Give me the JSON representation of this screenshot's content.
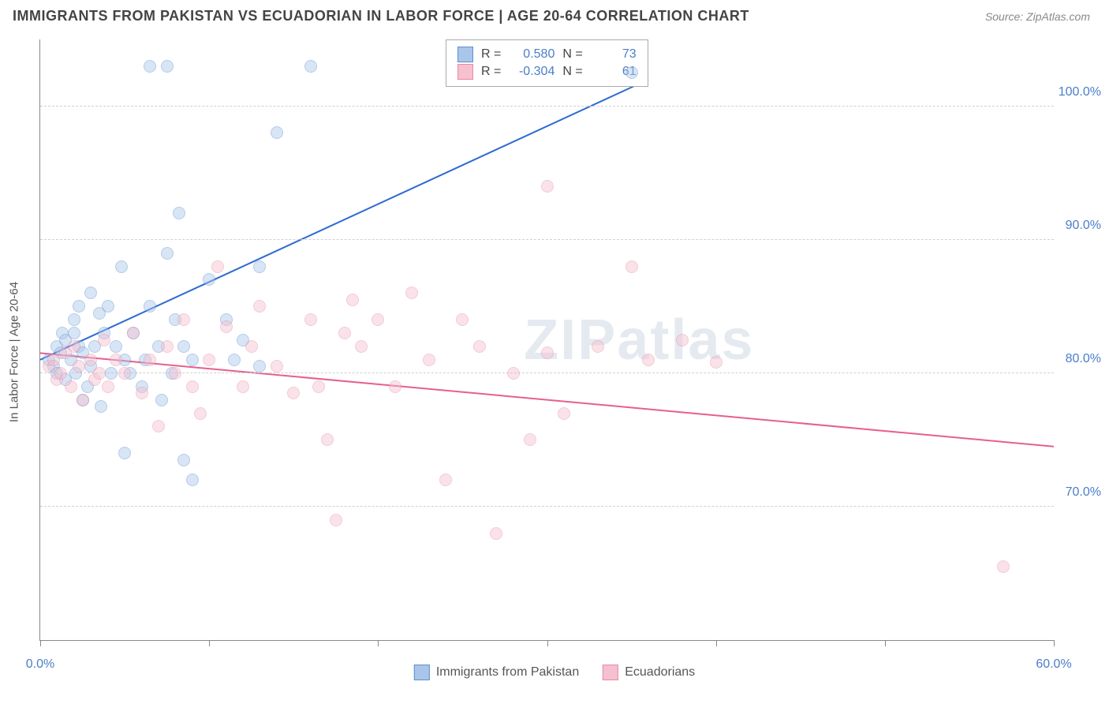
{
  "title": "IMMIGRANTS FROM PAKISTAN VS ECUADORIAN IN LABOR FORCE | AGE 20-64 CORRELATION CHART",
  "source": "Source: ZipAtlas.com",
  "watermark": "ZIPatlas",
  "y_axis_label": "In Labor Force | Age 20-64",
  "chart": {
    "type": "scatter",
    "xlim": [
      0,
      60
    ],
    "ylim": [
      60,
      105
    ],
    "x_ticks": [
      0,
      10,
      20,
      30,
      40,
      50,
      60
    ],
    "x_tick_labels": {
      "0": "0.0%",
      "60": "60.0%"
    },
    "y_ticks": [
      70,
      80,
      90,
      100
    ],
    "y_tick_labels": {
      "70": "70.0%",
      "80": "80.0%",
      "90": "90.0%",
      "100": "100.0%"
    },
    "background_color": "#ffffff",
    "grid_color": "#d0d0d0",
    "marker_radius": 8,
    "marker_opacity": 0.45,
    "line_width": 2,
    "series": [
      {
        "name": "Immigrants from Pakistan",
        "color_fill": "#a9c6ea",
        "color_stroke": "#5b8fd1",
        "line_color": "#2f6bd0",
        "R": "0.580",
        "N": "73",
        "trend": {
          "x1": 0,
          "y1": 81,
          "x2": 36,
          "y2": 102
        },
        "points": [
          [
            0.5,
            81
          ],
          [
            0.8,
            80.5
          ],
          [
            1,
            82
          ],
          [
            1,
            80
          ],
          [
            1.2,
            81.5
          ],
          [
            1.3,
            83
          ],
          [
            1.5,
            79.5
          ],
          [
            1.5,
            82.5
          ],
          [
            1.8,
            81
          ],
          [
            2,
            84
          ],
          [
            2,
            83
          ],
          [
            2.1,
            80
          ],
          [
            2.3,
            82
          ],
          [
            2.3,
            85
          ],
          [
            2.5,
            78
          ],
          [
            2.5,
            81.5
          ],
          [
            2.8,
            79
          ],
          [
            3,
            86
          ],
          [
            3,
            80.5
          ],
          [
            3.2,
            82
          ],
          [
            3.5,
            84.5
          ],
          [
            3.6,
            77.5
          ],
          [
            3.8,
            83
          ],
          [
            4,
            85
          ],
          [
            4.2,
            80
          ],
          [
            4.5,
            82
          ],
          [
            4.8,
            88
          ],
          [
            5,
            74
          ],
          [
            5,
            81
          ],
          [
            5.3,
            80
          ],
          [
            5.5,
            83
          ],
          [
            6,
            79
          ],
          [
            6.2,
            81
          ],
          [
            6.5,
            85
          ],
          [
            6.5,
            103
          ],
          [
            7,
            82
          ],
          [
            7.2,
            78
          ],
          [
            7.5,
            89
          ],
          [
            7.5,
            103
          ],
          [
            7.8,
            80
          ],
          [
            8,
            84
          ],
          [
            8.2,
            92
          ],
          [
            8.5,
            73.5
          ],
          [
            8.5,
            82
          ],
          [
            9,
            72
          ],
          [
            9,
            81
          ],
          [
            10,
            87
          ],
          [
            11,
            84
          ],
          [
            11.5,
            81
          ],
          [
            12,
            82.5
          ],
          [
            13,
            80.5
          ],
          [
            13,
            88
          ],
          [
            14,
            98
          ],
          [
            16,
            103
          ],
          [
            35,
            102.5
          ]
        ]
      },
      {
        "name": "Ecuadorians",
        "color_fill": "#f5c0cf",
        "color_stroke": "#e98aa6",
        "line_color": "#e75f8c",
        "R": "-0.304",
        "N": "61",
        "trend": {
          "x1": 0,
          "y1": 81.5,
          "x2": 60,
          "y2": 74.5
        },
        "points": [
          [
            0.5,
            80.5
          ],
          [
            0.8,
            81
          ],
          [
            1,
            79.5
          ],
          [
            1.2,
            80
          ],
          [
            1.5,
            81.5
          ],
          [
            1.8,
            79
          ],
          [
            2,
            82
          ],
          [
            2.3,
            80.5
          ],
          [
            2.5,
            78
          ],
          [
            3,
            81
          ],
          [
            3.2,
            79.5
          ],
          [
            3.5,
            80
          ],
          [
            3.8,
            82.5
          ],
          [
            4,
            79
          ],
          [
            4.5,
            81
          ],
          [
            5,
            80
          ],
          [
            5.5,
            83
          ],
          [
            6,
            78.5
          ],
          [
            6.5,
            81
          ],
          [
            7,
            76
          ],
          [
            7.5,
            82
          ],
          [
            8,
            80
          ],
          [
            8.5,
            84
          ],
          [
            9,
            79
          ],
          [
            9.5,
            77
          ],
          [
            10,
            81
          ],
          [
            10.5,
            88
          ],
          [
            11,
            83.5
          ],
          [
            12,
            79
          ],
          [
            12.5,
            82
          ],
          [
            13,
            85
          ],
          [
            14,
            80.5
          ],
          [
            15,
            78.5
          ],
          [
            16,
            84
          ],
          [
            16.5,
            79
          ],
          [
            17,
            75
          ],
          [
            17.5,
            69
          ],
          [
            18,
            83
          ],
          [
            18.5,
            85.5
          ],
          [
            19,
            82
          ],
          [
            20,
            84
          ],
          [
            21,
            79
          ],
          [
            22,
            86
          ],
          [
            23,
            81
          ],
          [
            24,
            72
          ],
          [
            25,
            84
          ],
          [
            26,
            82
          ],
          [
            27,
            68
          ],
          [
            28,
            80
          ],
          [
            29,
            75
          ],
          [
            30,
            81.5
          ],
          [
            30,
            94
          ],
          [
            31,
            77
          ],
          [
            33,
            82
          ],
          [
            35,
            88
          ],
          [
            36,
            81
          ],
          [
            38,
            82.5
          ],
          [
            40,
            80.8
          ],
          [
            57,
            65.5
          ]
        ]
      }
    ]
  },
  "stats_box": {
    "left_pct": 40,
    "top_pct": 0
  },
  "legend_bottom": true
}
